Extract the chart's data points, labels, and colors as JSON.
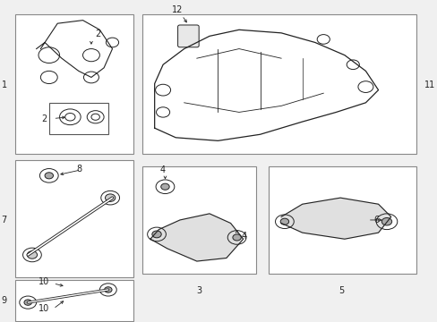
{
  "bg_color": "#f0f0f0",
  "box_color": "#ffffff",
  "box_edge_color": "#888888",
  "line_color": "#222222",
  "text_color": "#222222",
  "subbox_edge_color": "#555555"
}
